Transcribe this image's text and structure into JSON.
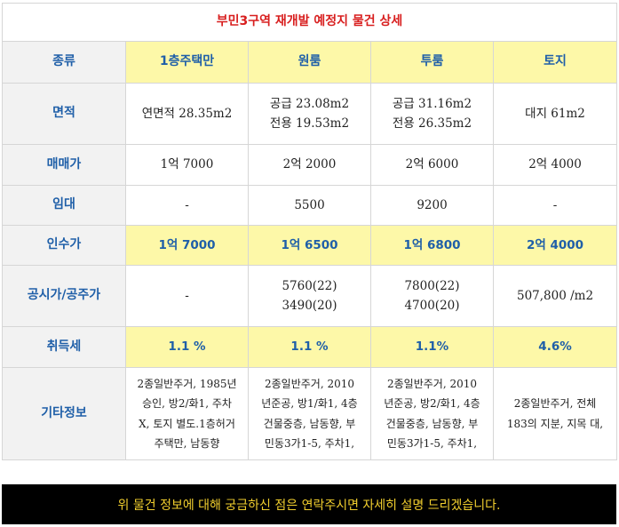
{
  "title": "부민3구역 재개발 예정지 물건 상세",
  "header": {
    "label": "종류",
    "cols": [
      "1층주택만",
      "원룸",
      "투룸",
      "토지"
    ]
  },
  "rows": {
    "area": {
      "label": "면적",
      "cells": [
        [
          "연면적 28.35m2"
        ],
        [
          "공급 23.08m2",
          "전용 19.53m2"
        ],
        [
          "공급 31.16m2",
          "전용 26.35m2"
        ],
        [
          "대지 61m2"
        ]
      ]
    },
    "price": {
      "label": "매매가",
      "cells": [
        "1억 7000",
        "2억 2000",
        "2억 6000",
        "2억 4000"
      ]
    },
    "lease": {
      "label": "임대",
      "cells": [
        "-",
        "5500",
        "9200",
        "-"
      ]
    },
    "acquisition": {
      "label": "인수가",
      "cells": [
        "1억 7000",
        "1억 6500",
        "1억 6800",
        "2억 4000"
      ]
    },
    "official": {
      "label": "공시가/공주가",
      "cells": [
        [
          "-"
        ],
        [
          "5760(22)",
          "3490(20)"
        ],
        [
          "7800(22)",
          "4700(20)"
        ],
        [
          "507,800 /m2"
        ]
      ]
    },
    "tax": {
      "label": "취득세",
      "cells": [
        "1.1 %",
        "1.1 %",
        "1.1%",
        "4.6%"
      ]
    },
    "etc": {
      "label": "기타정보",
      "cells": [
        [
          "2종일반주거, 1985년",
          "승인, 방2/화1, 주차",
          "X, 토지 별도.1층허거",
          "주택만, 남동향"
        ],
        [
          "2종일반주거, 2010",
          "년준공, 방1/화1, 4층",
          "건물중층, 남동향, 부",
          "민동3가1-5, 주차1,"
        ],
        [
          "2종일반주거, 2010",
          "년준공, 방2/화1, 4층",
          "건물중층, 남동향, 부",
          "민동3가1-5, 주차1,"
        ],
        [
          "2종일반주거, 전체",
          "183의 지분, 지목 대,"
        ]
      ]
    }
  },
  "footer": "위 물건 정보에 대해 궁금하신 점은 연락주시면 자세히 설명 드리겠습니다."
}
